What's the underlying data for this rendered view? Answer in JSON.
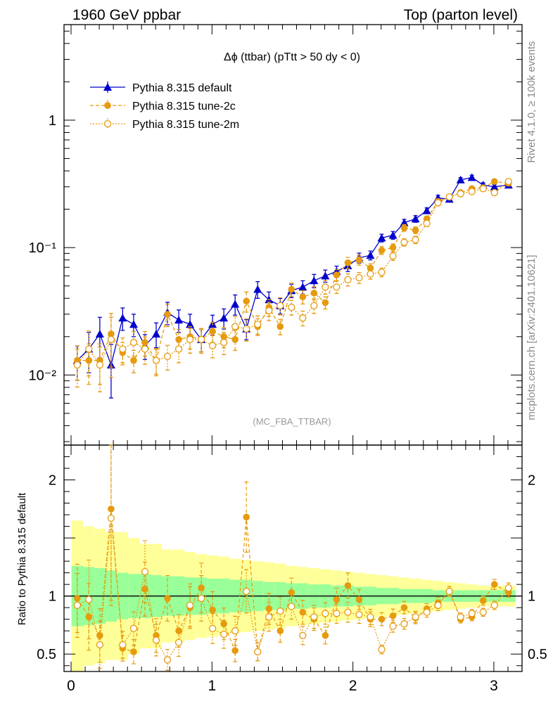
{
  "header": {
    "left": "1960 GeV ppbar",
    "right": "Top (parton level)"
  },
  "side_labels": {
    "top": "Rivet 4.1.0, ≥ 100k events",
    "bottom": "mcplots.cern.ch [arXiv:2401.10621]"
  },
  "chart_data": {
    "type": "line",
    "title": "Δϕ (ttbar) (pTtt > 50 dy < 0)",
    "watermark": "(MC_FBA_TTBAR)",
    "ylabel_ratio": "Ratio to Pythia 8.315 default",
    "xlim": [
      -0.05,
      3.2
    ],
    "ylim_main_log10": [
      -2.55,
      0.75
    ],
    "ylim_ratio": [
      0.35,
      2.3
    ],
    "x_ticks": [
      0,
      1,
      2,
      3
    ],
    "x_tick_labels": [
      "0",
      "1",
      "2",
      "3"
    ],
    "y_main_tick_labels": [
      "10⁻²",
      "10⁻¹",
      "1"
    ],
    "y_ratio_ticks": [
      0.5,
      1,
      2
    ],
    "y_ratio_tick_labels": [
      "0.5",
      "1",
      "2"
    ],
    "x": [
      0.044,
      0.126,
      0.204,
      0.284,
      0.366,
      0.444,
      0.524,
      0.604,
      0.684,
      0.764,
      0.844,
      0.924,
      1.004,
      1.084,
      1.164,
      1.244,
      1.324,
      1.404,
      1.484,
      1.564,
      1.644,
      1.724,
      1.804,
      1.884,
      1.964,
      2.044,
      2.124,
      2.204,
      2.284,
      2.364,
      2.444,
      2.524,
      2.604,
      2.684,
      2.764,
      2.844,
      2.924,
      3.004,
      3.104
    ],
    "series": [
      {
        "name": "Pythia 8.315 default",
        "color": "#0000cc",
        "marker": "triangle",
        "line": "solid",
        "values": [
          0.013,
          0.016,
          0.021,
          0.012,
          0.028,
          0.025,
          0.017,
          0.021,
          0.031,
          0.027,
          0.025,
          0.019,
          0.025,
          0.028,
          0.036,
          0.023,
          0.047,
          0.039,
          0.035,
          0.046,
          0.049,
          0.055,
          0.06,
          0.065,
          0.072,
          0.083,
          0.087,
          0.119,
          0.125,
          0.157,
          0.168,
          0.195,
          0.245,
          0.24,
          0.34,
          0.355,
          0.31,
          0.3,
          0.31
        ]
      },
      {
        "name": "Pythia 8.315 tune-2c",
        "color": "#e69a0e",
        "marker": "circle-filled",
        "line": "dashed",
        "values": [
          0.013,
          0.013,
          0.013,
          0.021,
          0.015,
          0.013,
          0.018,
          0.013,
          0.03,
          0.019,
          0.02,
          0.019,
          0.022,
          0.02,
          0.019,
          0.038,
          0.024,
          0.034,
          0.024,
          0.047,
          0.041,
          0.044,
          0.037,
          0.061,
          0.076,
          0.08,
          0.069,
          0.095,
          0.1,
          0.143,
          0.137,
          0.168,
          0.23,
          0.25,
          0.27,
          0.29,
          0.295,
          0.33,
          0.32
        ]
      },
      {
        "name": "Pythia 8.315 tune-2m",
        "color": "#e69a0e",
        "marker": "circle-open",
        "line": "dotted",
        "values": [
          0.012,
          0.016,
          0.012,
          0.019,
          0.016,
          0.018,
          0.016,
          0.013,
          0.014,
          0.016,
          0.019,
          0.019,
          0.017,
          0.018,
          0.024,
          0.023,
          0.025,
          0.032,
          0.035,
          0.034,
          0.028,
          0.035,
          0.049,
          0.049,
          0.056,
          0.058,
          0.062,
          0.064,
          0.086,
          0.11,
          0.115,
          0.155,
          0.225,
          0.25,
          0.265,
          0.275,
          0.29,
          0.27,
          0.33
        ]
      }
    ],
    "ratio_series": [
      {
        "name": "Pythia 8.315 tune-2c",
        "values": [
          0.98,
          0.82,
          0.66,
          1.75,
          0.55,
          0.52,
          1.06,
          0.66,
          0.98,
          0.7,
          0.9,
          1.07,
          0.88,
          0.76,
          0.53,
          1.68,
          0.52,
          0.89,
          0.7,
          1.03,
          0.86,
          0.8,
          0.66,
          0.97,
          1.09,
          0.97,
          0.8,
          0.8,
          0.83,
          0.9,
          0.81,
          0.89,
          0.94,
          1.04,
          0.8,
          0.82,
          0.96,
          1.1,
          1.03
        ]
      },
      {
        "name": "Pythia 8.315 tune-2m",
        "values": [
          0.92,
          0.97,
          0.58,
          1.67,
          0.58,
          0.72,
          1.21,
          0.62,
          0.45,
          0.6,
          0.92,
          0.98,
          0.72,
          0.67,
          0.7,
          1.04,
          0.52,
          0.82,
          0.87,
          0.91,
          0.66,
          0.82,
          0.85,
          0.85,
          0.86,
          0.84,
          0.82,
          0.54,
          0.74,
          0.76,
          0.82,
          0.86,
          0.92,
          1.04,
          0.82,
          0.85,
          0.86,
          0.92,
          1.07
        ]
      }
    ],
    "errors_main": [
      0.3,
      0.35,
      0.35,
      0.45,
      0.2,
      0.2,
      0.22,
      0.22,
      0.2,
      0.2,
      0.2,
      0.2,
      0.18,
      0.18,
      0.18,
      0.18,
      0.15,
      0.15,
      0.14,
      0.12,
      0.12,
      0.12,
      0.11,
      0.1,
      0.1,
      0.09,
      0.08,
      0.07,
      0.07,
      0.06,
      0.06,
      0.05,
      0.05,
      0.04,
      0.04,
      0.04,
      0.04,
      0.04,
      0.04
    ],
    "band_inner": [
      0.26,
      0.25,
      0.24,
      0.22,
      0.2,
      0.19,
      0.19,
      0.18,
      0.17,
      0.17,
      0.16,
      0.16,
      0.15,
      0.15,
      0.14,
      0.14,
      0.13,
      0.12,
      0.12,
      0.11,
      0.11,
      0.1,
      0.1,
      0.09,
      0.09,
      0.08,
      0.08,
      0.07,
      0.07,
      0.06,
      0.06,
      0.06,
      0.05,
      0.05,
      0.05,
      0.05,
      0.05,
      0.05,
      0.05
    ],
    "band_outer": [
      0.65,
      0.6,
      0.58,
      0.55,
      0.55,
      0.5,
      0.45,
      0.45,
      0.4,
      0.4,
      0.38,
      0.36,
      0.35,
      0.34,
      0.32,
      0.31,
      0.3,
      0.29,
      0.28,
      0.26,
      0.25,
      0.24,
      0.23,
      0.22,
      0.21,
      0.2,
      0.19,
      0.18,
      0.17,
      0.16,
      0.15,
      0.14,
      0.13,
      0.12,
      0.11,
      0.1,
      0.09,
      0.09,
      0.09
    ],
    "legend_placement": "top-left"
  }
}
